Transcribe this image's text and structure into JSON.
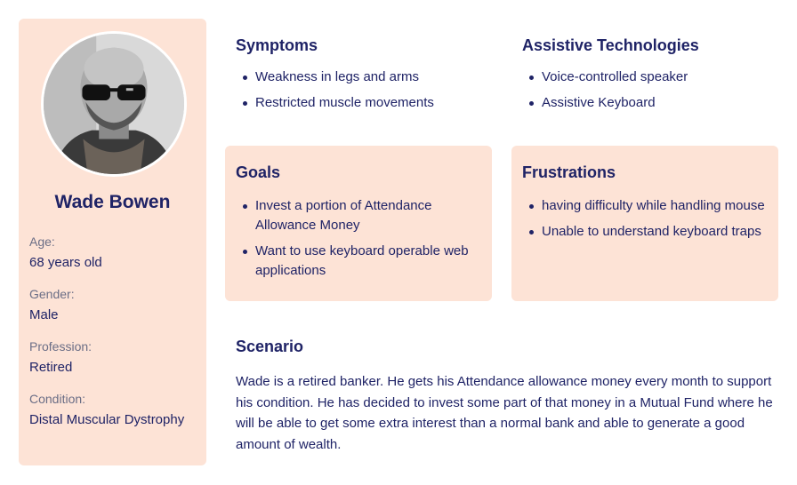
{
  "profile": {
    "name": "Wade Bowen",
    "photo_alt": "avatar",
    "fields": [
      {
        "label": "Age:",
        "value": "68 years old"
      },
      {
        "label": "Gender:",
        "value": "Male"
      },
      {
        "label": "Profession:",
        "value": "Retired"
      },
      {
        "label": "Condition:",
        "value": "Distal Muscular Dystrophy"
      }
    ]
  },
  "symptoms": {
    "title": "Symptoms",
    "items": [
      "Weakness in legs and arms",
      "Restricted muscle movements"
    ]
  },
  "assistive": {
    "title": "Assistive Technologies",
    "items": [
      "Voice-controlled speaker",
      "Assistive Keyboard"
    ]
  },
  "goals": {
    "title": "Goals",
    "items": [
      "Invest a portion of Attendance Allowance Money",
      "Want to use keyboard operable web applications"
    ]
  },
  "frustrations": {
    "title": "Frustrations",
    "items": [
      "having difficulty while handling mouse",
      "Unable to understand keyboard traps"
    ]
  },
  "scenario": {
    "title": "Scenario",
    "text": "Wade is a retired banker. He gets his Attendance allowance money every month to support his condition. He has decided to invest some part of that money in a Mutual Fund where he will be able to get some extra interest than a normal bank and able to generate a good amount of wealth."
  },
  "colors": {
    "card_bg": "#fde3d6",
    "text": "#1f2366",
    "label": "#6b6e86"
  }
}
